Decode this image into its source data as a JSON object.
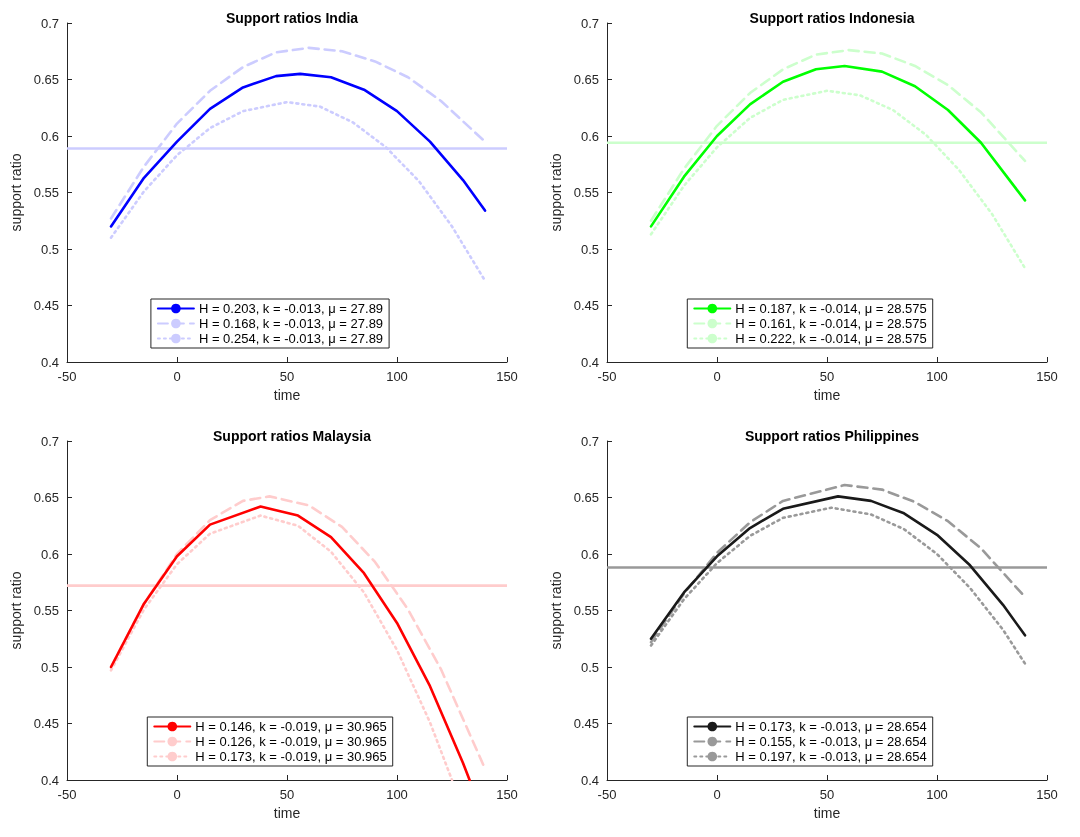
{
  "chart_data": [
    {
      "type": "line",
      "title": "Support ratios India",
      "xlabel": "time",
      "ylabel": "support ratio",
      "xlim": [
        -50,
        150
      ],
      "xticks": [
        -50,
        0,
        50,
        100,
        150
      ],
      "ylim": [
        0.4,
        0.7
      ],
      "yticks": [
        0.4,
        0.45,
        0.5,
        0.55,
        0.6,
        0.65,
        0.7
      ],
      "grid": false,
      "legend": "bottom",
      "marker": "none",
      "ref_lines": [
        {
          "axis": "y",
          "value": 0.589,
          "color": "#ccccff"
        }
      ],
      "series": [
        {
          "name": "H = 0.203, k = -0.013, μ = 27.89",
          "color": "#0000ff",
          "line_style": "solid",
          "x": [
            -30,
            -15,
            0,
            15,
            30,
            45,
            56,
            70,
            85,
            100,
            115,
            130,
            140
          ],
          "values": [
            0.52,
            0.563,
            0.595,
            0.624,
            0.643,
            0.653,
            0.655,
            0.652,
            0.641,
            0.622,
            0.595,
            0.561,
            0.534
          ]
        },
        {
          "name": "H = 0.168, k = -0.013, μ = 27.89",
          "color": "#ccccff",
          "line_style": "dashed",
          "x": [
            -30,
            -15,
            0,
            15,
            30,
            45,
            60,
            75,
            90,
            105,
            120,
            140
          ],
          "values": [
            0.527,
            0.573,
            0.611,
            0.64,
            0.661,
            0.674,
            0.678,
            0.675,
            0.666,
            0.652,
            0.631,
            0.595
          ]
        },
        {
          "name": "H = 0.254, k = -0.013, μ = 27.89",
          "color": "#ccccff",
          "line_style": "dotted",
          "x": [
            -30,
            -15,
            0,
            15,
            30,
            50,
            65,
            80,
            95,
            110,
            125,
            140
          ],
          "values": [
            0.51,
            0.551,
            0.583,
            0.607,
            0.622,
            0.63,
            0.626,
            0.612,
            0.59,
            0.56,
            0.52,
            0.472
          ]
        }
      ]
    },
    {
      "type": "line",
      "title": "Support ratios Indonesia",
      "xlabel": "time",
      "ylabel": "support ratio",
      "xlim": [
        -50,
        150
      ],
      "xticks": [
        -50,
        0,
        50,
        100,
        150
      ],
      "ylim": [
        0.4,
        0.7
      ],
      "yticks": [
        0.4,
        0.45,
        0.5,
        0.55,
        0.6,
        0.65,
        0.7
      ],
      "grid": false,
      "legend": "bottom",
      "marker": "none",
      "ref_lines": [
        {
          "axis": "y",
          "value": 0.594,
          "color": "#ccffcc"
        }
      ],
      "series": [
        {
          "name": "H = 0.187, k = -0.014, μ = 28.575",
          "color": "#00ff00",
          "line_style": "solid",
          "x": [
            -30,
            -15,
            0,
            15,
            30,
            45,
            58,
            75,
            90,
            105,
            120,
            140
          ],
          "values": [
            0.52,
            0.564,
            0.6,
            0.628,
            0.648,
            0.659,
            0.662,
            0.657,
            0.644,
            0.623,
            0.594,
            0.543
          ]
        },
        {
          "name": "H = 0.161, k = -0.014, μ = 28.575",
          "color": "#ccffcc",
          "line_style": "dashed",
          "x": [
            -30,
            -15,
            0,
            15,
            30,
            45,
            60,
            75,
            90,
            105,
            120,
            140
          ],
          "values": [
            0.525,
            0.571,
            0.609,
            0.638,
            0.659,
            0.672,
            0.676,
            0.673,
            0.662,
            0.645,
            0.621,
            0.578
          ]
        },
        {
          "name": "H = 0.222, k = -0.014, μ = 28.575",
          "color": "#ccffcc",
          "line_style": "dotted",
          "x": [
            -30,
            -15,
            0,
            15,
            30,
            50,
            65,
            80,
            95,
            110,
            125,
            140
          ],
          "values": [
            0.513,
            0.556,
            0.59,
            0.616,
            0.632,
            0.64,
            0.636,
            0.623,
            0.601,
            0.57,
            0.531,
            0.483
          ]
        }
      ]
    },
    {
      "type": "line",
      "title": "Support ratios Malaysia",
      "xlabel": "time",
      "ylabel": "support ratio",
      "xlim": [
        -50,
        150
      ],
      "xticks": [
        -50,
        0,
        50,
        100,
        150
      ],
      "ylim": [
        0.4,
        0.7
      ],
      "yticks": [
        0.4,
        0.45,
        0.5,
        0.55,
        0.6,
        0.65,
        0.7
      ],
      "grid": false,
      "legend": "bottom",
      "marker": "none",
      "ref_lines": [
        {
          "axis": "y",
          "value": 0.572,
          "color": "#ffcccc"
        }
      ],
      "series": [
        {
          "name": "H = 0.146, k = -0.019, μ = 30.965",
          "color": "#ff0000",
          "line_style": "solid",
          "x": [
            -30,
            -15,
            0,
            15,
            38,
            55,
            70,
            85,
            100,
            115,
            130,
            133
          ],
          "values": [
            0.5,
            0.556,
            0.598,
            0.626,
            0.642,
            0.634,
            0.615,
            0.583,
            0.539,
            0.483,
            0.415,
            0.4
          ]
        },
        {
          "name": "H = 0.126, k = -0.019, μ = 30.965",
          "color": "#ffcccc",
          "line_style": "dashed",
          "x": [
            -30,
            -15,
            0,
            15,
            30,
            42,
            60,
            75,
            90,
            105,
            120,
            140
          ],
          "values": [
            0.5,
            0.556,
            0.6,
            0.63,
            0.647,
            0.651,
            0.643,
            0.624,
            0.593,
            0.551,
            0.498,
            0.41
          ]
        },
        {
          "name": "H = 0.173, k = -0.019, μ = 30.965",
          "color": "#ffcccc",
          "line_style": "dotted",
          "x": [
            -30,
            -15,
            0,
            15,
            38,
            55,
            70,
            85,
            100,
            115,
            125
          ],
          "values": [
            0.497,
            0.551,
            0.591,
            0.618,
            0.634,
            0.625,
            0.602,
            0.566,
            0.515,
            0.451,
            0.4
          ]
        }
      ]
    },
    {
      "type": "line",
      "title": "Support ratios Philippines",
      "xlabel": "time",
      "ylabel": "support ratio",
      "xlim": [
        -50,
        150
      ],
      "xticks": [
        -50,
        0,
        50,
        100,
        150
      ],
      "ylim": [
        0.4,
        0.7
      ],
      "yticks": [
        0.4,
        0.45,
        0.5,
        0.55,
        0.6,
        0.65,
        0.7
      ],
      "grid": false,
      "legend": "bottom",
      "marker": "none",
      "ref_lines": [
        {
          "axis": "y",
          "value": 0.588,
          "color": "#999999"
        }
      ],
      "series": [
        {
          "name": "H = 0.173, k = -0.013, μ = 28.654",
          "color": "#1a1a1a",
          "line_style": "solid",
          "x": [
            -30,
            -15,
            0,
            15,
            30,
            55,
            70,
            85,
            100,
            115,
            130,
            140
          ],
          "values": [
            0.525,
            0.566,
            0.598,
            0.623,
            0.64,
            0.651,
            0.647,
            0.636,
            0.617,
            0.59,
            0.555,
            0.528
          ]
        },
        {
          "name": "H = 0.155, k = -0.013, μ = 28.654",
          "color": "#999999",
          "line_style": "dashed",
          "x": [
            -30,
            -15,
            0,
            15,
            30,
            58,
            75,
            90,
            105,
            120,
            140
          ],
          "values": [
            0.522,
            0.565,
            0.601,
            0.628,
            0.647,
            0.661,
            0.657,
            0.646,
            0.629,
            0.605,
            0.562
          ]
        },
        {
          "name": "H = 0.197, k = -0.013, μ = 28.654",
          "color": "#999999",
          "line_style": "dotted",
          "x": [
            -30,
            -15,
            0,
            15,
            30,
            52,
            70,
            85,
            100,
            115,
            130,
            140
          ],
          "values": [
            0.519,
            0.56,
            0.592,
            0.616,
            0.632,
            0.641,
            0.635,
            0.622,
            0.6,
            0.57,
            0.533,
            0.503
          ]
        }
      ]
    }
  ]
}
